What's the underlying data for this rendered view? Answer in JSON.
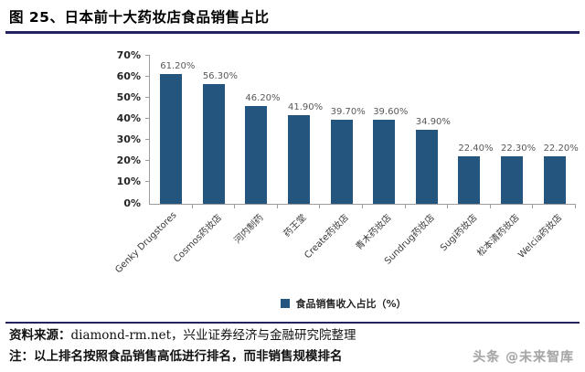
{
  "header": {
    "title": "图 25、日本前十大药妆店食品销售占比"
  },
  "legend": {
    "label": "食品销售收入占比（%）"
  },
  "footer": {
    "source_label": "资料来源：",
    "source_text": "diamond-rm.net，兴业证券经济与金融研究院整理",
    "note": "注：以上排名按照食品销售高低进行排名，而非销售规模排名",
    "watermark": "头条 @未来智库"
  },
  "colors": {
    "bar": "#24557E",
    "accent_line": "#23235F",
    "axis": "#9C9C9C",
    "value_label": "#595959"
  },
  "chart_data": {
    "type": "bar",
    "title": "日本前十大药妆店食品销售占比",
    "categories": [
      "Genky Drugstores",
      "Cosmos药妆店",
      "河内制药",
      "药王堂",
      "Create药妆店",
      "青木药妆店",
      "Sundrug药妆店",
      "Sugi药妆店",
      "松本清药妆店",
      "Welcia药妆店"
    ],
    "values": [
      61.2,
      56.3,
      46.2,
      41.9,
      39.7,
      39.6,
      34.9,
      22.4,
      22.3,
      22.2
    ],
    "value_labels": [
      "61.20%",
      "56.30%",
      "46.20%",
      "41.90%",
      "39.70%",
      "39.60%",
      "34.90%",
      "22.40%",
      "22.30%",
      "22.20%"
    ],
    "series": [
      {
        "name": "食品销售收入占比（%）",
        "values": [
          61.2,
          56.3,
          46.2,
          41.9,
          39.7,
          39.6,
          34.9,
          22.4,
          22.3,
          22.2
        ]
      }
    ],
    "y_ticks": [
      "0%",
      "10%",
      "20%",
      "30%",
      "40%",
      "50%",
      "60%",
      "70%"
    ],
    "ylim": [
      0,
      70
    ],
    "xlabel": "",
    "ylabel": "",
    "grid": false,
    "legend_position": "bottom"
  }
}
